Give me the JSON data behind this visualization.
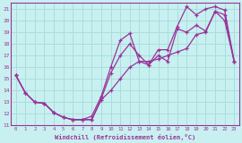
{
  "xlabel": "Windchill (Refroidissement éolien,°C)",
  "xlim": [
    -0.5,
    23.5
  ],
  "ylim": [
    11,
    21.5
  ],
  "xticks": [
    0,
    1,
    2,
    3,
    4,
    5,
    6,
    7,
    8,
    9,
    10,
    11,
    12,
    13,
    14,
    15,
    16,
    17,
    18,
    19,
    20,
    21,
    22,
    23
  ],
  "yticks": [
    11,
    12,
    13,
    14,
    15,
    16,
    17,
    18,
    19,
    20,
    21
  ],
  "bg_color": "#c8f0f0",
  "line_color": "#993399",
  "grid_color": "#aadddd",
  "line1_x": [
    0,
    1,
    2,
    3,
    4,
    5,
    6,
    7,
    8,
    9,
    10,
    11,
    12,
    13,
    14,
    15,
    16,
    17,
    18,
    19,
    20,
    21,
    22,
    23
  ],
  "line1_y": [
    15.3,
    13.8,
    13.0,
    12.9,
    12.1,
    11.7,
    11.5,
    11.5,
    11.5,
    13.3,
    15.5,
    17.0,
    18.0,
    17.0,
    16.2,
    17.0,
    16.5,
    19.3,
    19.0,
    19.6,
    19.1,
    20.8,
    20.5,
    16.5
  ],
  "line2_x": [
    0,
    1,
    2,
    3,
    4,
    5,
    6,
    7,
    8,
    9,
    10,
    11,
    12,
    13,
    14,
    15,
    16,
    17,
    18,
    19,
    20,
    21,
    22,
    23
  ],
  "line2_y": [
    15.3,
    13.8,
    13.0,
    12.9,
    12.1,
    11.7,
    11.5,
    11.5,
    11.8,
    13.5,
    16.0,
    18.3,
    18.9,
    16.5,
    16.2,
    17.5,
    17.5,
    19.5,
    21.2,
    20.5,
    21.0,
    21.2,
    20.9,
    16.5
  ],
  "line3_x": [
    0,
    1,
    2,
    3,
    4,
    5,
    6,
    7,
    8,
    9,
    10,
    11,
    12,
    13,
    14,
    15,
    16,
    17,
    18,
    19,
    20,
    21,
    22,
    23
  ],
  "line3_y": [
    15.3,
    13.8,
    13.0,
    12.9,
    12.1,
    11.7,
    11.5,
    11.5,
    11.5,
    13.2,
    14.0,
    15.0,
    16.0,
    16.5,
    16.5,
    16.7,
    17.0,
    17.3,
    17.6,
    18.8,
    19.0,
    20.8,
    20.0,
    16.5
  ]
}
